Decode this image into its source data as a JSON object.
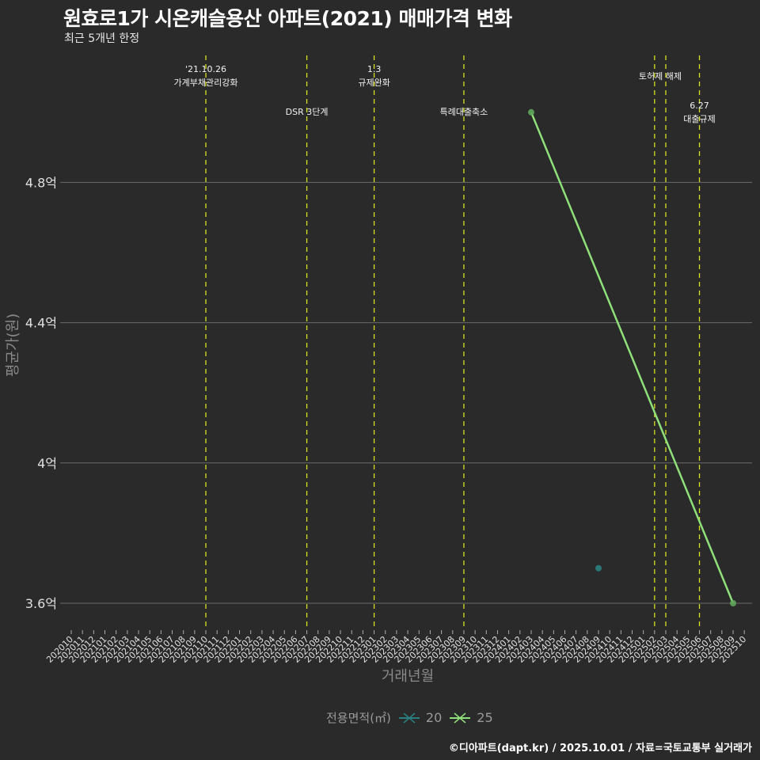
{
  "header": {
    "title": "원효로1가 시온캐슬용산 아파트(2021) 매매가격 변화",
    "subtitle": "최근 5개년 한정"
  },
  "caption": "©디아파트(dapt.kr) / 2025.10.01 / 자료=국토교통부 실거래가",
  "legend": {
    "title": "전용면적(㎡)",
    "items": [
      {
        "label": "20",
        "color": "#2a7f80"
      },
      {
        "label": "25",
        "color": "#8fe07a"
      }
    ]
  },
  "colors": {
    "background": "#2a2a2a",
    "grid": "#6a6a6a",
    "event_line": "#d8e020"
  },
  "chart_data": {
    "type": "line",
    "title": "원효로1가 시온캐슬용산 아파트(2021) 매매가격 변화",
    "subtitle": "최근 5개년 한정",
    "xlabel": "거래년월",
    "ylabel": "평균가(원)",
    "categories": [
      "202010",
      "202011",
      "202012",
      "202101",
      "202102",
      "202103",
      "202104",
      "202105",
      "202106",
      "202107",
      "202108",
      "202109",
      "202110",
      "202111",
      "202112",
      "202201",
      "202202",
      "202203",
      "202204",
      "202205",
      "202206",
      "202207",
      "202208",
      "202209",
      "202210",
      "202211",
      "202212",
      "202301",
      "202302",
      "202303",
      "202304",
      "202305",
      "202306",
      "202307",
      "202308",
      "202309",
      "202310",
      "202311",
      "202312",
      "202401",
      "202402",
      "202403",
      "202404",
      "202405",
      "202406",
      "202407",
      "202408",
      "202409",
      "202410",
      "202411",
      "202412",
      "202501",
      "202502",
      "202503",
      "202504",
      "202505",
      "202506",
      "202507",
      "202508",
      "202509",
      "202510"
    ],
    "ylim": [
      3.55,
      5.2
    ],
    "yticks": [
      3.6,
      4.0,
      4.4,
      4.8
    ],
    "ytick_labels": [
      "3.6억",
      "4억",
      "4.4억",
      "4.8억"
    ],
    "grid": "horizontal",
    "legend_position": "bottom",
    "series": [
      {
        "name": "20",
        "color": "#2a7f80",
        "points": [
          {
            "x": "202409",
            "y": 3.7
          }
        ]
      },
      {
        "name": "25",
        "color": "#8fe07a",
        "points": [
          {
            "x": "202403",
            "y": 5.0
          },
          {
            "x": "202509",
            "y": 3.6
          }
        ]
      }
    ],
    "annotations": [
      {
        "x": "202110",
        "lines": [
          "'21.10.26",
          "가계부채관리강화"
        ],
        "row": 0
      },
      {
        "x": "202207",
        "lines": [
          "DSR 3단계"
        ],
        "row": 2
      },
      {
        "x": "202301",
        "lines": [
          "1.3",
          "규제완화"
        ],
        "row": 0
      },
      {
        "x": "202309",
        "lines": [
          "특례대출축소"
        ],
        "row": 2
      },
      {
        "x": "202502",
        "lines": [],
        "row": 1
      },
      {
        "x": "202503",
        "lines": [
          "토허제 해제"
        ],
        "row": 1,
        "text_x": "202502.5"
      },
      {
        "x": "202506",
        "lines": [
          "6.27",
          "대출규제"
        ],
        "row": 3
      }
    ]
  }
}
